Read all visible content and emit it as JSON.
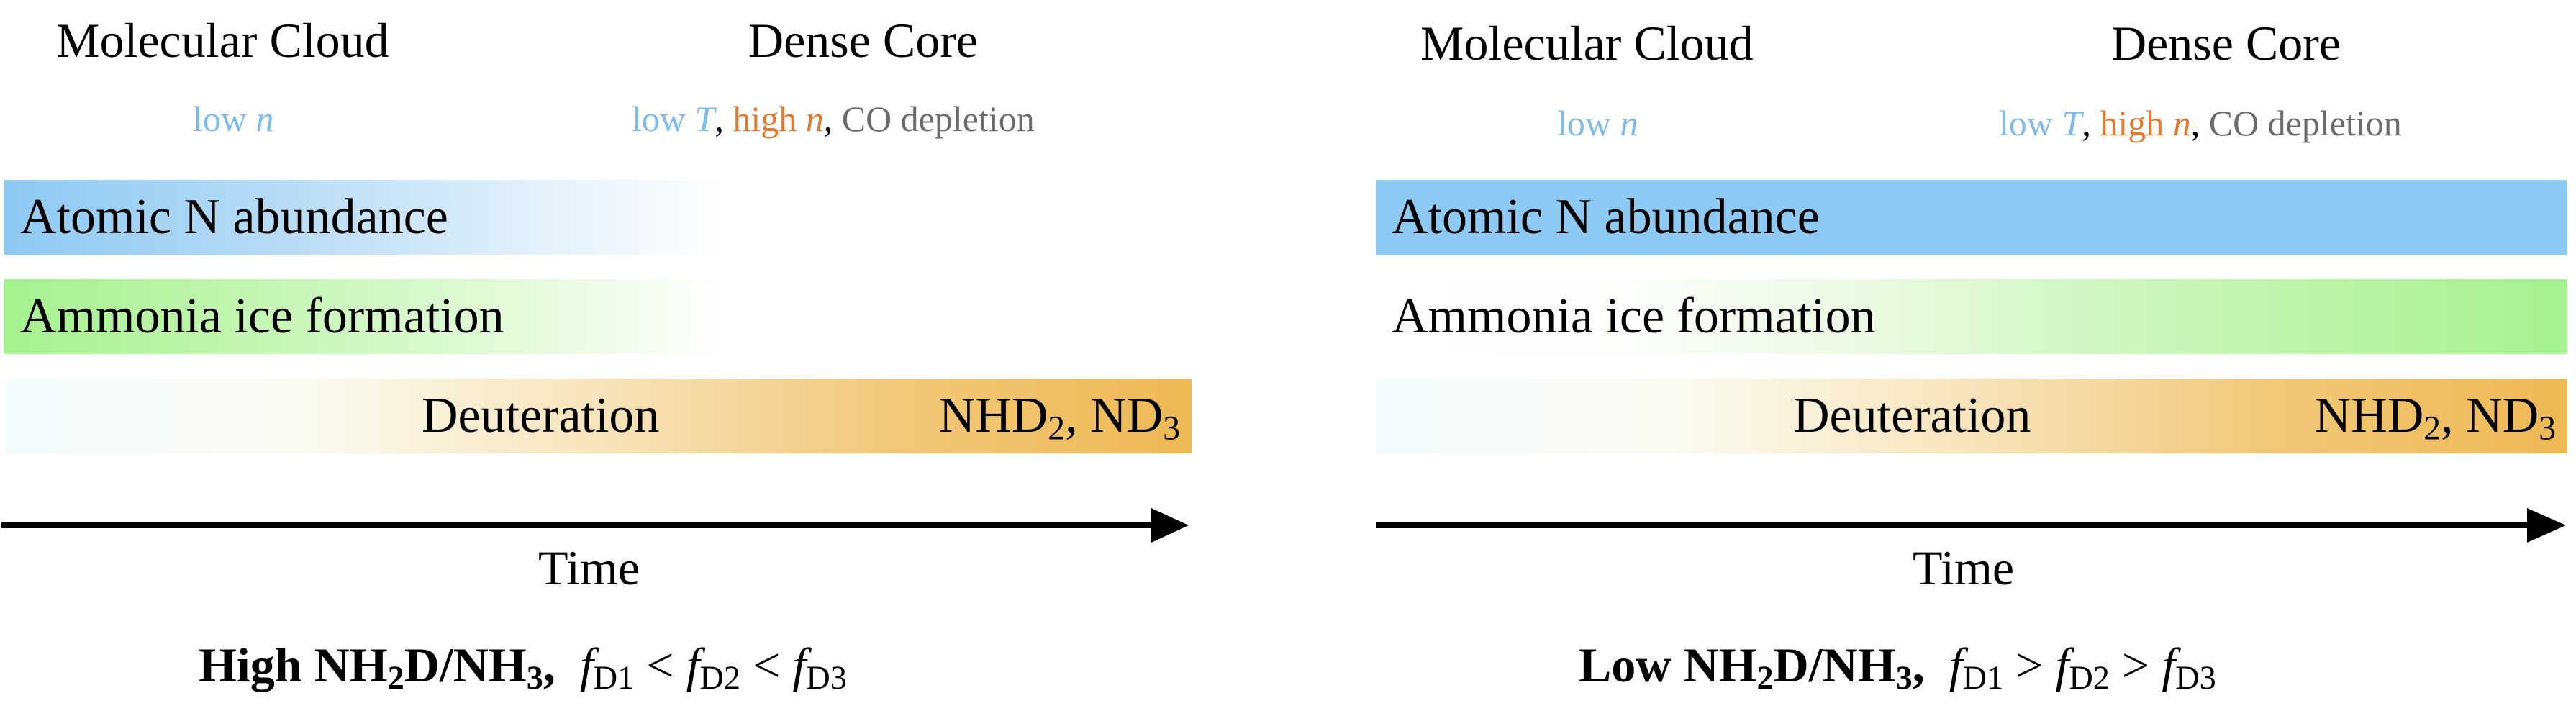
{
  "panels": [
    {
      "phase_cloud": "Molecular Cloud",
      "phase_core": "Dense Core",
      "cloud_cond": {
        "a": "low ",
        "b": "n"
      },
      "core_cond": {
        "t1": "low ",
        "t2": "T",
        "t3": ", ",
        "t4": "high ",
        "t5": "n",
        "t6": ",",
        "t7": " CO depletion"
      },
      "bar_atomic": "Atomic N abundance",
      "bar_ammonia": "Ammonia ice formation",
      "bar_deut": "Deuteration",
      "bar_species": {
        "a": "NHD",
        "a_sub": "2",
        "b": ", ND",
        "b_sub": "3"
      },
      "axis_label": "Time",
      "summary": {
        "ratio_a": "High NH",
        "ratio_a_sub": "2",
        "ratio_b": "D/NH",
        "ratio_b_sub": "3",
        "ratio_c": ",",
        "f": "f",
        "s1": "D1",
        "op1": " < ",
        "s2": "D2",
        "op2": " < ",
        "s3": "D3"
      }
    },
    {
      "phase_cloud": "Molecular Cloud",
      "phase_core": "Dense Core",
      "cloud_cond": {
        "a": "low ",
        "b": "n"
      },
      "core_cond": {
        "t1": "low ",
        "t2": "T",
        "t3": ", ",
        "t4": "high ",
        "t5": "n",
        "t6": ",",
        "t7": " CO depletion"
      },
      "bar_atomic": "Atomic N abundance",
      "bar_ammonia": "Ammonia ice formation",
      "bar_deut": "Deuteration",
      "bar_species": {
        "a": "NHD",
        "a_sub": "2",
        "b": ", ND",
        "b_sub": "3"
      },
      "axis_label": "Time",
      "summary": {
        "ratio_a": "Low NH",
        "ratio_a_sub": "2",
        "ratio_b": "D/NH",
        "ratio_b_sub": "3",
        "ratio_c": ",",
        "f": "f",
        "s1": "D1",
        "op1": " > ",
        "s2": "D2",
        "op2": " > ",
        "s3": "D3"
      }
    }
  ],
  "colors": {
    "atomic": "#8ec9f3",
    "ammonia": "#a6f18f",
    "deuteration": "#eeb954",
    "low": "#7fbbea",
    "high": "#e07a2e",
    "neutral": "#6b6b6b"
  }
}
